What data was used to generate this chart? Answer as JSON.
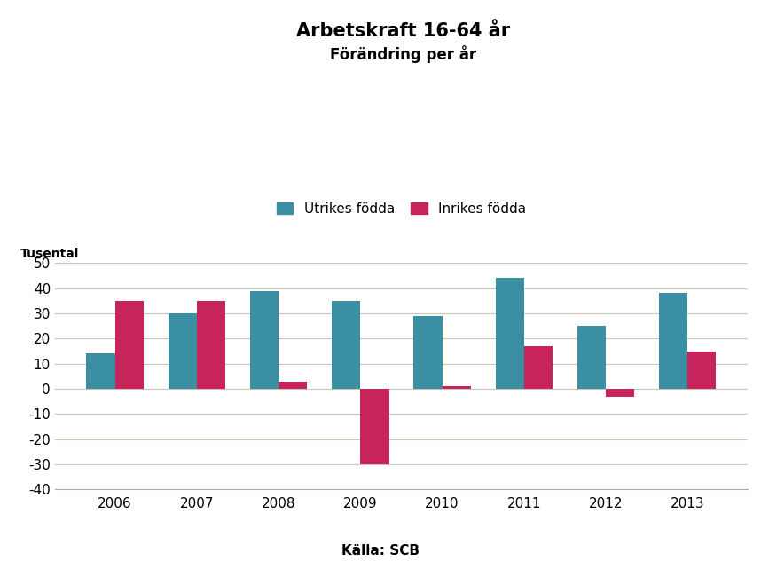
{
  "title_line1": "Arbetskraft 16-64 år",
  "title_line2": "Förändring per år",
  "ylabel": "Tusental",
  "xlabel_note": "Källa: SCB",
  "years": [
    2006,
    2007,
    2008,
    2009,
    2010,
    2011,
    2012,
    2013
  ],
  "utrikes_fodda": [
    14,
    30,
    39,
    35,
    29,
    44,
    25,
    38
  ],
  "inrikes_fodda": [
    35,
    35,
    3,
    -30,
    1,
    17,
    -3,
    15
  ],
  "color_utrikes": "#3a8fa3",
  "color_inrikes": "#c8245c",
  "legend_utrikes": "Utrikes födda",
  "legend_inrikes": "Inrikes födda",
  "ylim": [
    -40,
    50
  ],
  "yticks": [
    -40,
    -30,
    -20,
    -10,
    0,
    10,
    20,
    30,
    40,
    50
  ],
  "bar_width": 0.35,
  "background_color": "#ffffff",
  "grid_color": "#c8c8b4",
  "title_fontsize": 15,
  "subtitle_fontsize": 12,
  "label_fontsize": 10,
  "tick_fontsize": 11,
  "legend_fontsize": 11,
  "note_fontsize": 11
}
